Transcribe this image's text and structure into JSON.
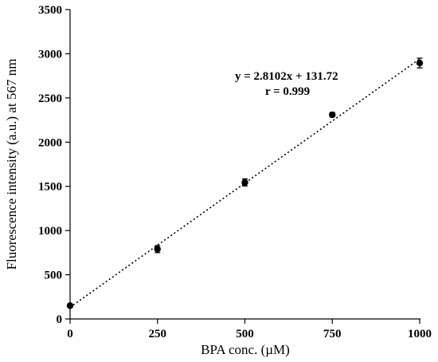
{
  "chart_data": {
    "type": "scatter",
    "xlabel": "BPA conc. (µM)",
    "ylabel": "Fluorescence intensity (a.u.) at 567 nm",
    "xlim": [
      0,
      1000
    ],
    "ylim": [
      0,
      3500
    ],
    "xticks": [
      0,
      250,
      500,
      750,
      1000
    ],
    "yticks": [
      0,
      500,
      1000,
      1500,
      2000,
      2500,
      3000,
      3500
    ],
    "grid": false,
    "points": [
      {
        "x": 0,
        "y": 150,
        "err": 15
      },
      {
        "x": 250,
        "y": 790,
        "err": 40
      },
      {
        "x": 500,
        "y": 1545,
        "err": 40
      },
      {
        "x": 750,
        "y": 2310,
        "err": 25
      },
      {
        "x": 1000,
        "y": 2895,
        "err": 55
      }
    ],
    "fit": {
      "slope": 2.8102,
      "intercept": 131.72,
      "style": "dotted"
    },
    "annotations": {
      "equation": "y = 2.8102x + 131.72",
      "r": "r = 0.999"
    }
  }
}
